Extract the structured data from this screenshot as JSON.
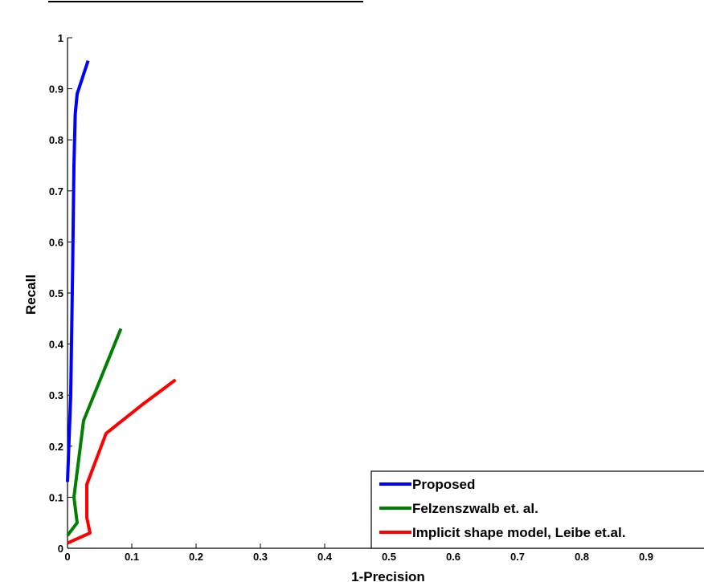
{
  "chart_data": {
    "type": "line",
    "title": "",
    "xlabel": "1-Precision",
    "ylabel": "Recall",
    "xlim": [
      0,
      1
    ],
    "ylim": [
      0,
      1
    ],
    "xticks": [
      "0",
      "0.1",
      "0.2",
      "0.3",
      "0.4",
      "0.5",
      "0.6",
      "0.7",
      "0.8",
      "0.9"
    ],
    "yticks": [
      "0",
      "0.1",
      "0.2",
      "0.3",
      "0.4",
      "0.5",
      "0.6",
      "0.7",
      "0.8",
      "0.9",
      "1"
    ],
    "grid": false,
    "legend_position": "bottom-right",
    "series": [
      {
        "name": "Proposed",
        "color": "#0000ff",
        "points": [
          [
            0.0,
            0.13
          ],
          [
            0.005,
            0.3
          ],
          [
            0.008,
            0.55
          ],
          [
            0.01,
            0.75
          ],
          [
            0.012,
            0.85
          ],
          [
            0.015,
            0.89
          ],
          [
            0.032,
            0.955
          ]
        ]
      },
      {
        "name": "Felzenszwalb et. al.",
        "color": "#007f00",
        "points": [
          [
            0.0,
            0.025
          ],
          [
            0.015,
            0.05
          ],
          [
            0.01,
            0.1
          ],
          [
            0.025,
            0.25
          ],
          [
            0.083,
            0.43
          ]
        ]
      },
      {
        "name": "Implicit shape model, Leibe et.al.",
        "color": "#ff0000",
        "points": [
          [
            0.0,
            0.01
          ],
          [
            0.035,
            0.03
          ],
          [
            0.03,
            0.06
          ],
          [
            0.03,
            0.125
          ],
          [
            0.06,
            0.225
          ],
          [
            0.115,
            0.28
          ],
          [
            0.168,
            0.33
          ]
        ]
      }
    ]
  }
}
